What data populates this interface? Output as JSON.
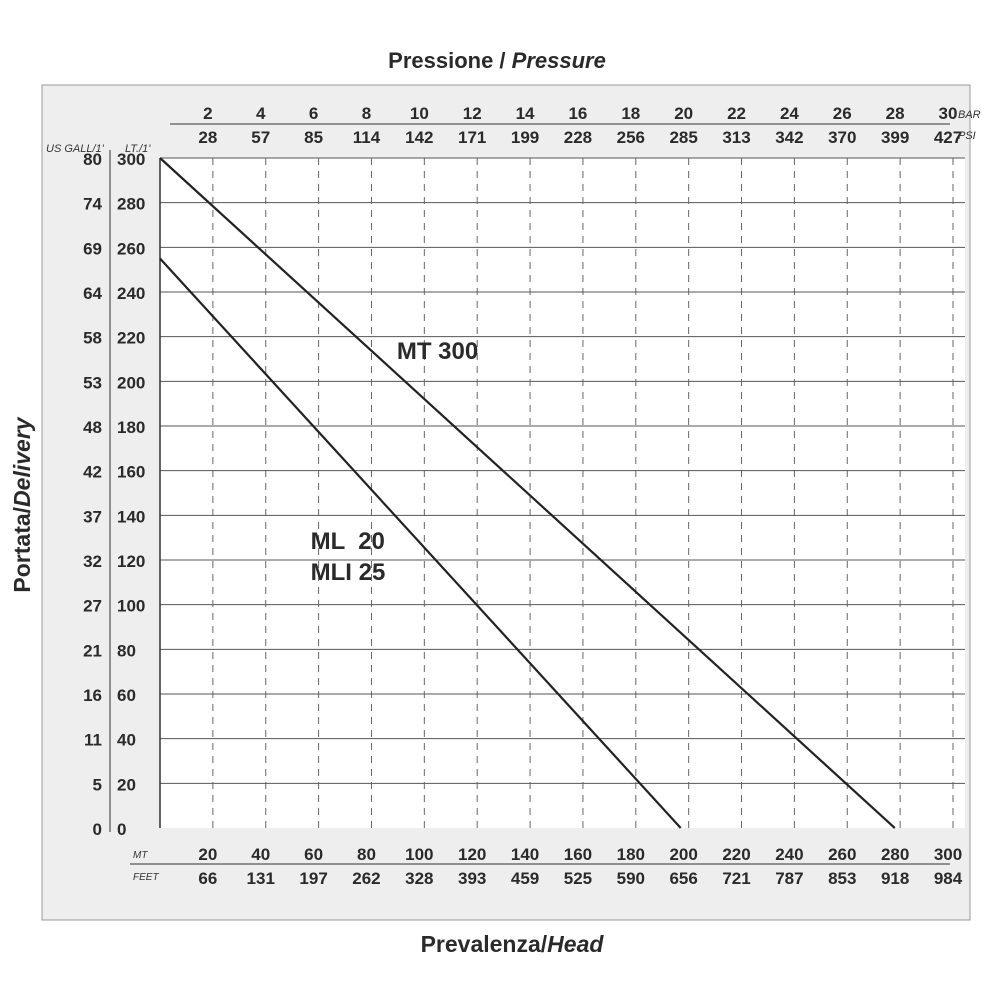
{
  "chart_data": {
    "type": "line",
    "title": "Pressione / Pressure",
    "title_parts": [
      "Pressione",
      "Pressure"
    ],
    "xlabel": "Prevalenza/Head",
    "xlabel_parts": [
      "Prevalenza",
      "Head"
    ],
    "ylabel": "Portata/Delivery",
    "ylabel_parts": [
      "Portata",
      "Delivery"
    ],
    "x_unit": "MT",
    "x_unit_alt": "FEET",
    "y_unit": "LT./1'",
    "y_unit_alt": "US GALL/1'",
    "top_unit": "BAR",
    "top_unit_alt": "PSI",
    "xlim": [
      0,
      300
    ],
    "ylim": [
      0,
      300
    ],
    "grid": true,
    "x_ticks_mt": [
      20,
      40,
      60,
      80,
      100,
      120,
      140,
      160,
      180,
      200,
      220,
      240,
      260,
      280,
      300
    ],
    "x_ticks_feet": [
      66,
      131,
      197,
      262,
      328,
      393,
      459,
      525,
      590,
      656,
      721,
      787,
      853,
      918,
      984
    ],
    "top_ticks_bar": [
      2,
      4,
      6,
      8,
      10,
      12,
      14,
      16,
      18,
      20,
      22,
      24,
      26,
      28,
      30
    ],
    "top_ticks_psi": [
      28,
      57,
      85,
      114,
      142,
      171,
      199,
      228,
      256,
      285,
      313,
      342,
      370,
      399,
      427
    ],
    "y_ticks_lt": [
      0,
      20,
      40,
      60,
      80,
      100,
      120,
      140,
      160,
      180,
      200,
      220,
      240,
      260,
      280,
      300
    ],
    "y_ticks_gal": [
      0,
      5,
      11,
      16,
      21,
      27,
      32,
      37,
      42,
      48,
      53,
      58,
      64,
      69,
      74,
      80
    ],
    "series": [
      {
        "name": "MT 300",
        "x": [
          0,
          278
        ],
        "y": [
          300,
          0
        ]
      },
      {
        "name": "ML 20 / MLI 25",
        "name_lines": [
          "ML  20",
          "MLI 25"
        ],
        "x": [
          0,
          197
        ],
        "y": [
          255,
          0
        ]
      }
    ]
  }
}
